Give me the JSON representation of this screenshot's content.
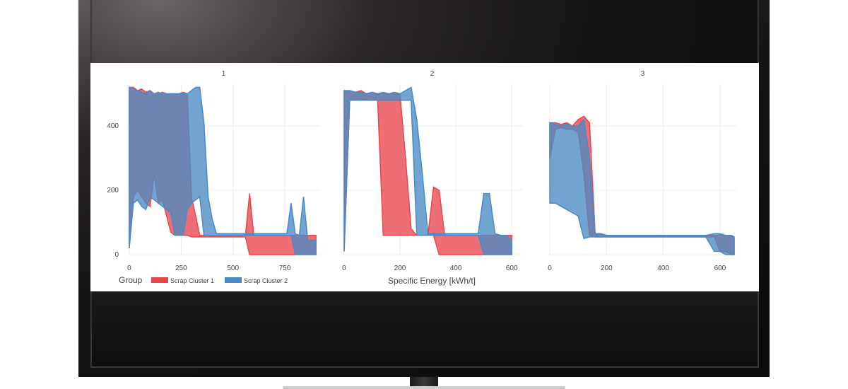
{
  "chart_data": {
    "type": "area",
    "xlabel": "Specific Energy [kWh/t]",
    "legend": {
      "title": "Group",
      "placement": "bottom-left",
      "entries": [
        {
          "name": "Scrap Cluster 1",
          "color": "#e8474c"
        },
        {
          "name": "Scrap Cluster 2",
          "color": "#4a8ac4"
        }
      ]
    },
    "y_ticks": [
      "0",
      "200",
      "400"
    ],
    "ylim": [
      0,
      530
    ],
    "grid": true,
    "panels": [
      {
        "title": "1",
        "xlim": [
          -10,
          920
        ],
        "x_ticks": [
          0,
          250,
          500,
          750
        ],
        "series": [
          {
            "name": "Scrap Cluster 1",
            "x": [
              0,
              20,
              40,
              60,
              80,
              100,
              120,
              140,
              160,
              180,
              200,
              220,
              240,
              260,
              280,
              300,
              320,
              340,
              360,
              380,
              400,
              420,
              440,
              460,
              480,
              500,
              520,
              540,
              560,
              580,
              600,
              620,
              640,
              660,
              680,
              700,
              720,
              740,
              760,
              780,
              800,
              820,
              840,
              860,
              880,
              900
            ],
            "low": [
              20,
              180,
              200,
              180,
              160,
              150,
              250,
              160,
              170,
              120,
              70,
              60,
              60,
              60,
              60,
              55,
              55,
              55,
              55,
              55,
              55,
              55,
              55,
              55,
              55,
              55,
              55,
              55,
              55,
              0,
              0,
              0,
              0,
              0,
              0,
              0,
              0,
              0,
              0,
              0,
              0,
              0,
              0,
              0,
              0,
              0
            ],
            "high": [
              520,
              520,
              510,
              515,
              505,
              510,
              500,
              500,
              505,
              500,
              500,
              500,
              500,
              505,
              500,
              180,
              120,
              60,
              60,
              60,
              60,
              60,
              60,
              60,
              60,
              60,
              60,
              60,
              60,
              190,
              60,
              60,
              60,
              60,
              60,
              60,
              60,
              60,
              60,
              60,
              60,
              60,
              60,
              60,
              60,
              60
            ]
          },
          {
            "name": "Scrap Cluster 2",
            "x": [
              0,
              20,
              40,
              60,
              80,
              100,
              120,
              140,
              160,
              180,
              200,
              220,
              240,
              260,
              280,
              300,
              320,
              340,
              360,
              380,
              400,
              420,
              440,
              460,
              480,
              500,
              520,
              540,
              560,
              580,
              600,
              620,
              640,
              660,
              680,
              700,
              720,
              740,
              760,
              780,
              800,
              820,
              840,
              860,
              880,
              900
            ],
            "low": [
              20,
              160,
              170,
              150,
              140,
              180,
              170,
              160,
              150,
              140,
              130,
              60,
              60,
              60,
              140,
              160,
              170,
              180,
              60,
              60,
              60,
              60,
              60,
              60,
              60,
              60,
              60,
              60,
              60,
              60,
              60,
              60,
              60,
              60,
              60,
              60,
              60,
              60,
              60,
              60,
              0,
              0,
              0,
              0,
              0,
              0
            ],
            "high": [
              520,
              515,
              510,
              505,
              500,
              510,
              500,
              505,
              500,
              500,
              500,
              500,
              500,
              500,
              500,
              510,
              520,
              520,
              410,
              180,
              110,
              65,
              65,
              65,
              65,
              65,
              65,
              65,
              65,
              65,
              65,
              65,
              65,
              65,
              65,
              65,
              65,
              65,
              65,
              160,
              65,
              60,
              180,
              45,
              45,
              45
            ]
          }
        ]
      },
      {
        "title": "2",
        "xlim": [
          -10,
          640
        ],
        "x_ticks": [
          0,
          200,
          400,
          600
        ],
        "series": [
          {
            "name": "Scrap Cluster 1",
            "x": [
              0,
              20,
              40,
              60,
              80,
              100,
              120,
              140,
              160,
              180,
              200,
              220,
              240,
              260,
              280,
              300,
              320,
              340,
              360,
              380,
              400,
              420,
              440,
              460,
              480,
              500,
              520,
              540,
              560,
              580,
              600
            ],
            "low": [
              10,
              480,
              480,
              485,
              480,
              480,
              480,
              60,
              60,
              60,
              60,
              60,
              60,
              60,
              60,
              60,
              60,
              0,
              0,
              0,
              0,
              0,
              0,
              0,
              0,
              0,
              0,
              0,
              0,
              0,
              0
            ],
            "high": [
              510,
              510,
              505,
              510,
              500,
              505,
              500,
              500,
              500,
              500,
              500,
              300,
              80,
              60,
              60,
              60,
              210,
              200,
              60,
              60,
              60,
              60,
              60,
              60,
              60,
              60,
              60,
              60,
              60,
              60,
              60
            ]
          },
          {
            "name": "Scrap Cluster 2",
            "x": [
              0,
              20,
              40,
              60,
              80,
              100,
              120,
              140,
              160,
              180,
              200,
              220,
              240,
              260,
              280,
              300,
              320,
              340,
              360,
              380,
              400,
              420,
              440,
              460,
              480,
              500,
              520,
              540,
              560,
              580,
              600
            ],
            "low": [
              10,
              480,
              480,
              480,
              480,
              480,
              480,
              480,
              480,
              480,
              480,
              480,
              480,
              60,
              60,
              60,
              60,
              60,
              60,
              60,
              60,
              60,
              60,
              60,
              60,
              0,
              0,
              0,
              0,
              0,
              0
            ],
            "high": [
              510,
              510,
              505,
              505,
              500,
              505,
              500,
              505,
              500,
              505,
              500,
              510,
              520,
              420,
              250,
              65,
              65,
              65,
              65,
              65,
              65,
              65,
              65,
              65,
              65,
              190,
              190,
              65,
              60,
              60,
              45
            ]
          }
        ]
      },
      {
        "title": "3",
        "xlim": [
          -5,
          660
        ],
        "x_ticks": [
          0,
          200,
          400,
          600
        ],
        "series": [
          {
            "name": "Scrap Cluster 1",
            "x": [
              0,
              20,
              40,
              60,
              80,
              100,
              120,
              140,
              160,
              180,
              200,
              250,
              300,
              350,
              400,
              450,
              500,
              550,
              580,
              600,
              620,
              640,
              650
            ],
            "low": [
              300,
              390,
              395,
              390,
              390,
              380,
              250,
              60,
              55,
              55,
              55,
              55,
              55,
              55,
              55,
              55,
              55,
              55,
              55,
              10,
              10,
              0,
              0
            ],
            "high": [
              410,
              410,
              405,
              410,
              400,
              420,
              430,
              410,
              65,
              65,
              60,
              60,
              60,
              60,
              60,
              60,
              60,
              60,
              60,
              60,
              60,
              60,
              50
            ]
          },
          {
            "name": "Scrap Cluster 2",
            "x": [
              0,
              20,
              40,
              60,
              80,
              100,
              120,
              140,
              160,
              180,
              200,
              250,
              300,
              350,
              400,
              450,
              500,
              550,
              580,
              600,
              620,
              640,
              650
            ],
            "low": [
              160,
              160,
              150,
              140,
              130,
              120,
              50,
              55,
              55,
              55,
              55,
              55,
              55,
              55,
              55,
              55,
              55,
              55,
              10,
              10,
              0,
              0,
              0
            ],
            "high": [
              410,
              405,
              400,
              405,
              400,
              400,
              420,
              300,
              65,
              65,
              60,
              60,
              60,
              60,
              60,
              60,
              60,
              60,
              65,
              65,
              60,
              60,
              55
            ]
          }
        ]
      }
    ]
  }
}
